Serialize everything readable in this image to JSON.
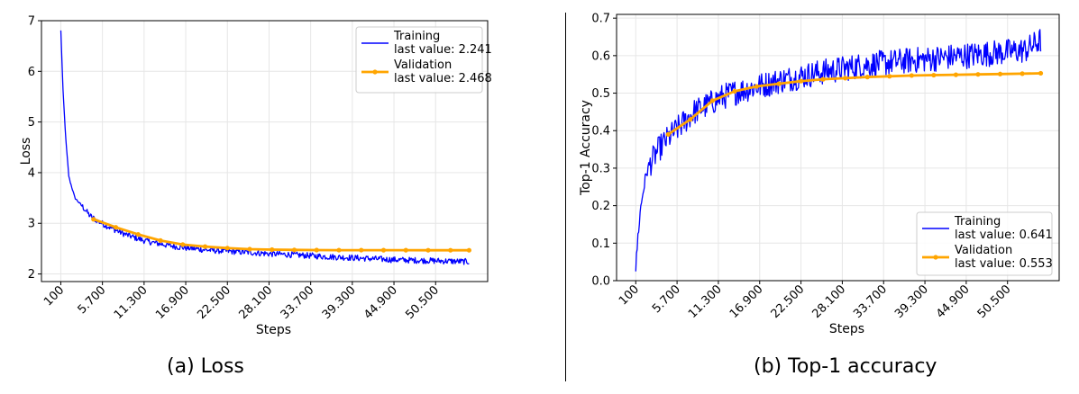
{
  "chart_data": [
    {
      "type": "line",
      "caption": "(a) Loss",
      "xlabel": "Steps",
      "ylabel": "Loss",
      "x_tick_labels": [
        "100",
        "5.700",
        "11.300",
        "16.900",
        "22.500",
        "28.100",
        "33.700",
        "39.300",
        "44.900",
        "50.500"
      ],
      "x_ticks": [
        100,
        5700,
        11300,
        16900,
        22500,
        28100,
        33700,
        39300,
        44900,
        50500
      ],
      "xlim": [
        -2500,
        57500
      ],
      "y_ticks": [
        2,
        3,
        4,
        5,
        6,
        7
      ],
      "ylim": [
        1.85,
        7.0
      ],
      "grid": true,
      "legend_position": "top-right",
      "series": [
        {
          "name": "Training",
          "legend_label": "last value: 2.241",
          "color": "#0000ff",
          "marker": "none",
          "noise": 0.06,
          "x": [
            100,
            400,
            800,
            1200,
            1600,
            2000,
            2600,
            3200,
            4000,
            5000,
            6000,
            7000,
            8000,
            9000,
            10000,
            11300,
            12500,
            14000,
            16000,
            18000,
            20000,
            22500,
            25000,
            28100,
            31000,
            33700,
            36000,
            39300,
            42000,
            44900,
            47500,
            50500,
            53000,
            55000
          ],
          "y": [
            6.8,
            5.6,
            4.6,
            3.9,
            3.7,
            3.5,
            3.4,
            3.3,
            3.15,
            3.05,
            2.97,
            2.9,
            2.83,
            2.77,
            2.72,
            2.66,
            2.62,
            2.58,
            2.53,
            2.5,
            2.47,
            2.45,
            2.43,
            2.4,
            2.38,
            2.36,
            2.34,
            2.32,
            2.3,
            2.28,
            2.27,
            2.26,
            2.25,
            2.241
          ]
        },
        {
          "name": "Validation",
          "legend_label": "last value: 2.468",
          "color": "#ffa500",
          "marker": "dot",
          "x": [
            4500,
            7500,
            10500,
            13500,
            16500,
            19500,
            22500,
            25500,
            28500,
            31500,
            34500,
            37500,
            40500,
            43500,
            46500,
            49500,
            52500,
            55000
          ],
          "y": [
            3.08,
            2.92,
            2.78,
            2.66,
            2.58,
            2.54,
            2.51,
            2.49,
            2.48,
            2.475,
            2.472,
            2.47,
            2.47,
            2.469,
            2.469,
            2.468,
            2.468,
            2.468
          ]
        }
      ]
    },
    {
      "type": "line",
      "caption": "(b) Top-1 accuracy",
      "xlabel": "Steps",
      "ylabel": "Top-1 Accuracy",
      "x_tick_labels": [
        "100",
        "5.700",
        "11.300",
        "16.900",
        "22.500",
        "28.100",
        "33.700",
        "39.300",
        "44.900",
        "50.500"
      ],
      "x_ticks": [
        100,
        5700,
        11300,
        16900,
        22500,
        28100,
        33700,
        39300,
        44900,
        50500
      ],
      "xlim": [
        -2500,
        57500
      ],
      "y_ticks": [
        0.0,
        0.1,
        0.2,
        0.3,
        0.4,
        0.5,
        0.6,
        0.7
      ],
      "y_tick_labels": [
        "0.0",
        "0.1",
        "0.2",
        "0.3",
        "0.4",
        "0.5",
        "0.6",
        "0.7"
      ],
      "ylim": [
        0.0,
        0.71
      ],
      "grid": true,
      "legend_position": "bottom-right",
      "series": [
        {
          "name": "Training",
          "legend_label": "last value: 0.641",
          "color": "#0000ff",
          "marker": "none",
          "noise": 0.035,
          "x": [
            100,
            400,
            800,
            1200,
            1600,
            2000,
            2600,
            3200,
            4000,
            5000,
            6000,
            7000,
            8000,
            9000,
            10000,
            11300,
            12500,
            14000,
            16000,
            18000,
            20000,
            22500,
            25000,
            28100,
            31000,
            33700,
            36000,
            39300,
            42000,
            44900,
            47500,
            50500,
            53000,
            55000
          ],
          "y": [
            0.03,
            0.12,
            0.2,
            0.25,
            0.29,
            0.31,
            0.33,
            0.35,
            0.37,
            0.39,
            0.41,
            0.43,
            0.45,
            0.46,
            0.47,
            0.485,
            0.495,
            0.505,
            0.515,
            0.525,
            0.535,
            0.545,
            0.555,
            0.565,
            0.575,
            0.58,
            0.585,
            0.59,
            0.595,
            0.6,
            0.605,
            0.61,
            0.615,
            0.641
          ]
        },
        {
          "name": "Validation",
          "legend_label": "last value: 0.553",
          "color": "#ffa500",
          "marker": "dot",
          "x": [
            4500,
            7500,
            10500,
            13500,
            16500,
            19500,
            22500,
            25500,
            28500,
            31500,
            34500,
            37500,
            40500,
            43500,
            46500,
            49500,
            52500,
            55000
          ],
          "y": [
            0.39,
            0.43,
            0.48,
            0.505,
            0.518,
            0.525,
            0.532,
            0.537,
            0.54,
            0.543,
            0.545,
            0.547,
            0.548,
            0.549,
            0.55,
            0.551,
            0.552,
            0.553
          ]
        }
      ]
    }
  ]
}
